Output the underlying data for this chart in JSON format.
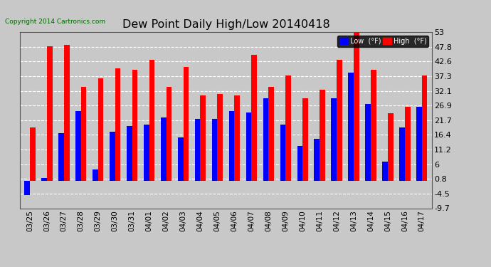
{
  "title": "Dew Point Daily High/Low 20140418",
  "dates": [
    "03/25",
    "03/26",
    "03/27",
    "03/28",
    "03/29",
    "03/30",
    "03/31",
    "04/01",
    "04/02",
    "04/03",
    "04/04",
    "04/05",
    "04/06",
    "04/07",
    "04/08",
    "04/09",
    "04/10",
    "04/11",
    "04/12",
    "04/13",
    "04/14",
    "04/15",
    "04/16",
    "04/17"
  ],
  "high_values": [
    19.0,
    48.0,
    48.5,
    33.5,
    36.5,
    40.0,
    39.5,
    43.0,
    33.5,
    40.5,
    30.5,
    31.0,
    30.5,
    45.0,
    33.5,
    37.5,
    29.5,
    32.5,
    43.0,
    54.0,
    39.5,
    24.0,
    26.5,
    37.5
  ],
  "low_values": [
    -5.0,
    1.0,
    17.0,
    25.0,
    4.0,
    17.5,
    19.5,
    20.0,
    22.5,
    15.5,
    22.0,
    22.0,
    25.0,
    24.5,
    29.5,
    20.0,
    12.5,
    15.0,
    29.5,
    38.5,
    27.5,
    7.0,
    19.0,
    26.5
  ],
  "high_color": "#ff0000",
  "low_color": "#0000ff",
  "bg_color": "#c8c8c8",
  "plot_bg_color": "#c8c8c8",
  "grid_color": "#ffffff",
  "ymin": -9.7,
  "ymax": 53.0,
  "yticks": [
    -9.7,
    -4.5,
    0.8,
    6.0,
    11.2,
    16.4,
    21.7,
    26.9,
    32.1,
    37.3,
    42.6,
    47.8,
    53.0
  ],
  "copyright_text": "Copyright 2014 Cartronics.com",
  "legend_low_label": "Low  (°F)",
  "legend_high_label": "High  (°F)",
  "bar_width": 0.32
}
